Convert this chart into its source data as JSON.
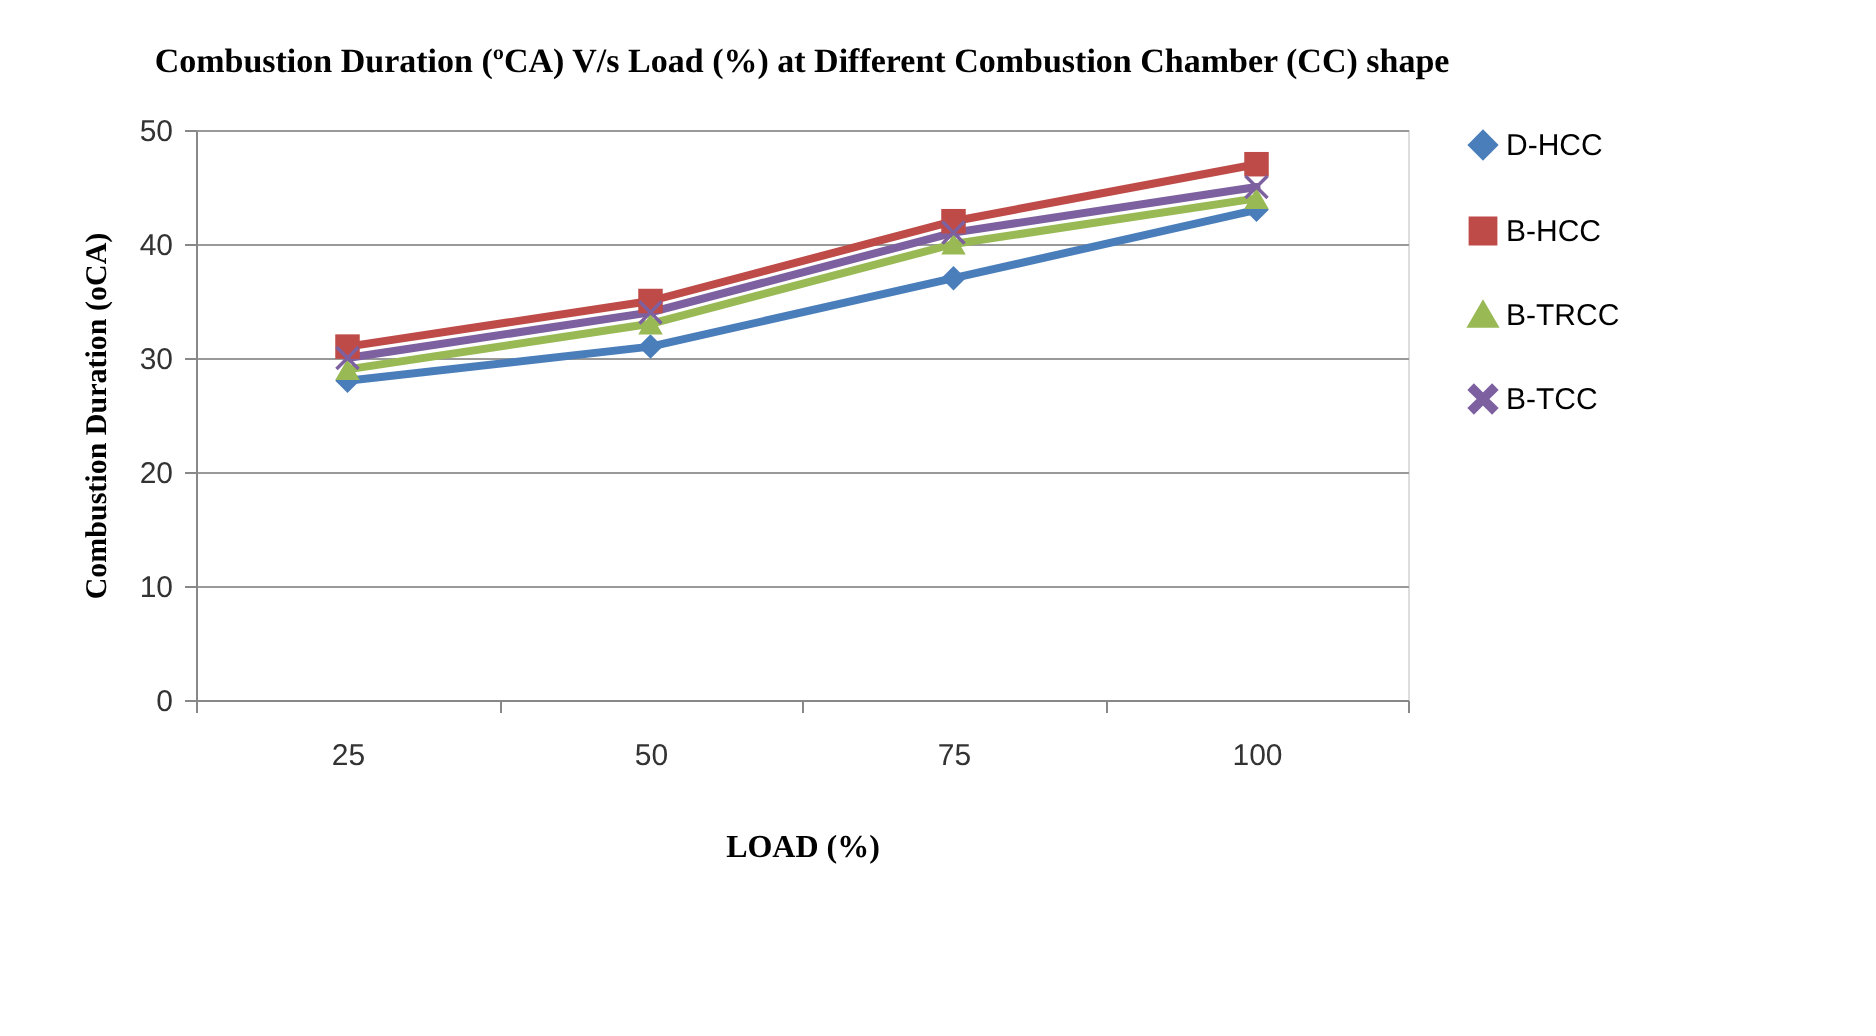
{
  "chart_data": {
    "type": "line",
    "title": "Combustion Duration (ºCA) V/s Load (%) at Different Combustion Chamber (CC) shape",
    "xlabel": "LOAD (%)",
    "ylabel": "Combustion Duration (oCA)",
    "categories": [
      "25",
      "50",
      "75",
      "100"
    ],
    "series": [
      {
        "name": "D-HCC",
        "color": "#4a7ebb",
        "marker": "diamond",
        "values": [
          28,
          31,
          37,
          43
        ]
      },
      {
        "name": "B-HCC",
        "color": "#be4b48",
        "marker": "square",
        "values": [
          31,
          35,
          42,
          47
        ]
      },
      {
        "name": "B-TRCC",
        "color": "#98b954",
        "marker": "triangle",
        "values": [
          29,
          33,
          40,
          44
        ]
      },
      {
        "name": "B-TCC",
        "color": "#7d60a0",
        "marker": "cross",
        "values": [
          30,
          34,
          41,
          45
        ]
      }
    ],
    "ylim": [
      0,
      50
    ],
    "yticks": [
      0,
      10,
      20,
      30,
      40,
      50
    ],
    "grid": "y",
    "legend": "right",
    "line_style": "solid"
  }
}
